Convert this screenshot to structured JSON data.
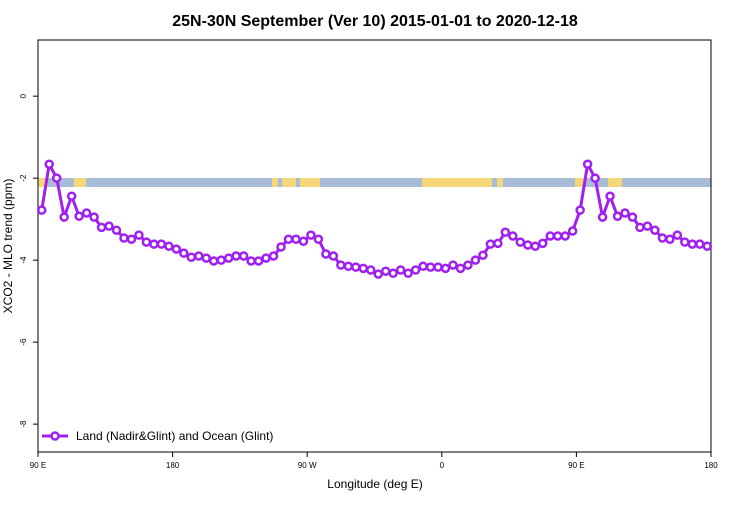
{
  "chart_data": {
    "type": "line",
    "title": "25N-30N September (Ver 10)   2015-01-01 to 2020-12-18",
    "x_label": "Longitude (deg E)",
    "y_label": "XCO2 - MLO trend (ppm)",
    "xlim": [
      90,
      540
    ],
    "ylim": [
      -8.68,
      1.37
    ],
    "xticks": [
      {
        "value": 90,
        "label": "90 E"
      },
      180,
      {
        "value": 270,
        "label": "90 W"
      },
      {
        "value": 360,
        "label": "0"
      },
      {
        "value": 450,
        "label": "90 E"
      },
      {
        "value": 540,
        "label": "180"
      }
    ],
    "yticks": [
      -8,
      -6,
      -4,
      -2,
      0
    ],
    "legend": "bottomleft",
    "x": [
      92.5,
      97.5,
      102.5,
      107.5,
      112.5,
      117.5,
      122.5,
      127.5,
      132.5,
      137.5,
      142.5,
      147.5,
      152.5,
      157.5,
      162.5,
      167.5,
      172.5,
      177.5,
      182.5,
      187.5,
      192.5,
      197.5,
      202.5,
      207.5,
      212.5,
      217.5,
      222.5,
      227.5,
      232.5,
      237.5,
      242.5,
      247.5,
      252.5,
      257.5,
      262.5,
      267.5,
      272.5,
      277.5,
      282.5,
      287.5,
      292.5,
      297.5,
      302.5,
      307.5,
      312.5,
      317.5,
      322.5,
      327.5,
      332.5,
      337.5,
      342.5,
      347.5,
      352.5,
      357.5,
      362.5,
      367.5,
      372.5,
      377.5,
      382.5,
      387.5,
      392.5,
      397.5,
      402.5,
      407.5,
      412.5,
      417.5,
      422.5,
      427.5,
      432.5,
      437.5,
      442.5,
      447.5,
      452.5,
      457.5,
      462.5,
      467.5,
      472.5,
      477.5,
      482.5,
      487.5,
      492.5,
      497.5,
      502.5,
      507.5,
      512.5,
      517.5,
      522.5,
      527.5,
      532.5,
      537.5
    ],
    "series": [
      {
        "name": "Land (Nadir&Glint) and Ocean (Glint)",
        "color": "#a020f0",
        "values": [
          -2.78,
          -1.66,
          -2.0,
          -2.95,
          -2.44,
          -2.93,
          -2.85,
          -2.95,
          -3.2,
          -3.17,
          -3.27,
          -3.46,
          -3.49,
          -3.39,
          -3.56,
          -3.61,
          -3.61,
          -3.66,
          -3.73,
          -3.83,
          -3.93,
          -3.9,
          -3.95,
          -4.02,
          -4.0,
          -3.95,
          -3.9,
          -3.9,
          -4.02,
          -4.02,
          -3.95,
          -3.9,
          -3.68,
          -3.49,
          -3.49,
          -3.54,
          -3.39,
          -3.49,
          -3.85,
          -3.9,
          -4.12,
          -4.15,
          -4.17,
          -4.2,
          -4.24,
          -4.34,
          -4.27,
          -4.32,
          -4.24,
          -4.32,
          -4.24,
          -4.15,
          -4.17,
          -4.17,
          -4.2,
          -4.12,
          -4.2,
          -4.12,
          -4.0,
          -3.88,
          -3.61,
          -3.59,
          -3.32,
          -3.41,
          -3.56,
          -3.63,
          -3.66,
          -3.59,
          -3.41,
          -3.41,
          -3.41,
          -3.29,
          -2.78,
          -1.66,
          -2.0,
          -2.95,
          -2.44,
          -2.93,
          -2.85,
          -2.95,
          -3.2,
          -3.17,
          -3.27,
          -3.46,
          -3.49,
          -3.39,
          -3.56,
          -3.61,
          -3.61,
          -3.66
        ]
      }
    ]
  }
}
